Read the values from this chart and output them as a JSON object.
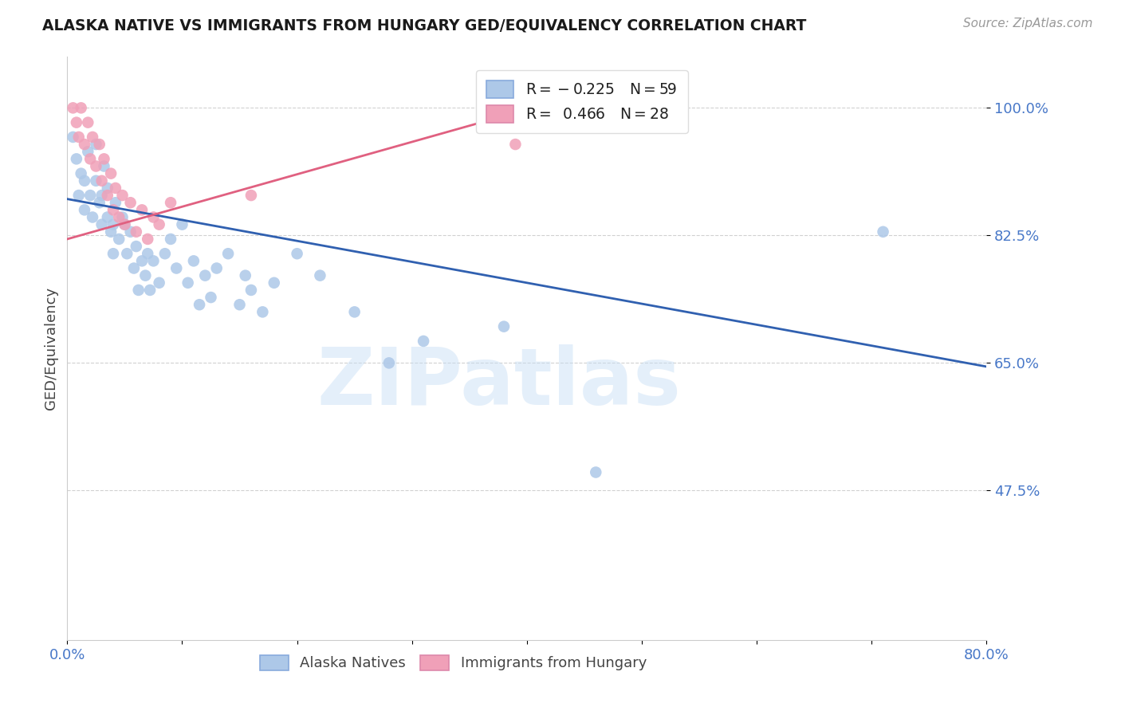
{
  "title": "ALASKA NATIVE VS IMMIGRANTS FROM HUNGARY GED/EQUIVALENCY CORRELATION CHART",
  "source": "Source: ZipAtlas.com",
  "ylabel": "GED/Equivalency",
  "legend_label_blue": "Alaska Natives",
  "legend_label_pink": "Immigrants from Hungary",
  "R_blue": -0.225,
  "N_blue": 59,
  "R_pink": 0.466,
  "N_pink": 28,
  "xlim": [
    0.0,
    0.8
  ],
  "ylim": [
    0.27,
    1.07
  ],
  "yticks": [
    0.475,
    0.65,
    0.825,
    1.0
  ],
  "ytick_labels": [
    "47.5%",
    "65.0%",
    "82.5%",
    "100.0%"
  ],
  "xticks": [
    0.0,
    0.1,
    0.2,
    0.3,
    0.4,
    0.5,
    0.6,
    0.7,
    0.8
  ],
  "xtick_labels": [
    "0.0%",
    "",
    "",
    "",
    "",
    "",
    "",
    "",
    "80.0%"
  ],
  "watermark": "ZIPatlas",
  "blue_color": "#adc8e8",
  "pink_color": "#f0a0b8",
  "blue_line_color": "#3060b0",
  "pink_line_color": "#e06080",
  "axis_color": "#4878c8",
  "blue_scatter_x": [
    0.005,
    0.008,
    0.01,
    0.012,
    0.015,
    0.015,
    0.018,
    0.02,
    0.022,
    0.025,
    0.025,
    0.028,
    0.03,
    0.03,
    0.032,
    0.035,
    0.035,
    0.038,
    0.04,
    0.04,
    0.042,
    0.045,
    0.048,
    0.05,
    0.052,
    0.055,
    0.058,
    0.06,
    0.062,
    0.065,
    0.068,
    0.07,
    0.072,
    0.075,
    0.08,
    0.085,
    0.09,
    0.095,
    0.1,
    0.105,
    0.11,
    0.115,
    0.12,
    0.125,
    0.13,
    0.14,
    0.15,
    0.155,
    0.16,
    0.17,
    0.18,
    0.2,
    0.22,
    0.25,
    0.28,
    0.31,
    0.38,
    0.46,
    0.71
  ],
  "blue_scatter_y": [
    0.96,
    0.93,
    0.88,
    0.91,
    0.86,
    0.9,
    0.94,
    0.88,
    0.85,
    0.9,
    0.95,
    0.87,
    0.84,
    0.88,
    0.92,
    0.85,
    0.89,
    0.83,
    0.8,
    0.84,
    0.87,
    0.82,
    0.85,
    0.84,
    0.8,
    0.83,
    0.78,
    0.81,
    0.75,
    0.79,
    0.77,
    0.8,
    0.75,
    0.79,
    0.76,
    0.8,
    0.82,
    0.78,
    0.84,
    0.76,
    0.79,
    0.73,
    0.77,
    0.74,
    0.78,
    0.8,
    0.73,
    0.77,
    0.75,
    0.72,
    0.76,
    0.8,
    0.77,
    0.72,
    0.65,
    0.68,
    0.7,
    0.5,
    0.83
  ],
  "pink_scatter_x": [
    0.005,
    0.008,
    0.01,
    0.012,
    0.015,
    0.018,
    0.02,
    0.022,
    0.025,
    0.028,
    0.03,
    0.032,
    0.035,
    0.038,
    0.04,
    0.042,
    0.045,
    0.048,
    0.05,
    0.055,
    0.06,
    0.065,
    0.07,
    0.075,
    0.08,
    0.09,
    0.16,
    0.39
  ],
  "pink_scatter_y": [
    1.0,
    0.98,
    0.96,
    1.0,
    0.95,
    0.98,
    0.93,
    0.96,
    0.92,
    0.95,
    0.9,
    0.93,
    0.88,
    0.91,
    0.86,
    0.89,
    0.85,
    0.88,
    0.84,
    0.87,
    0.83,
    0.86,
    0.82,
    0.85,
    0.84,
    0.87,
    0.88,
    0.95
  ],
  "blue_trend_x": [
    0.0,
    0.8
  ],
  "blue_trend_y": [
    0.875,
    0.645
  ],
  "pink_trend_x": [
    0.0,
    0.45
  ],
  "pink_trend_y": [
    0.82,
    1.02
  ]
}
